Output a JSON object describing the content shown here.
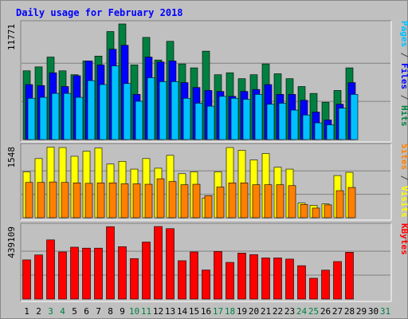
{
  "chart_data": {
    "type": "bar",
    "title": "Daily usage for February 2018",
    "categories": [
      "1",
      "2",
      "3",
      "4",
      "5",
      "6",
      "7",
      "8",
      "9",
      "10",
      "11",
      "12",
      "13",
      "14",
      "15",
      "16",
      "17",
      "18",
      "19",
      "20",
      "21",
      "22",
      "23",
      "24",
      "25",
      "26",
      "27",
      "28",
      "29",
      "30",
      "31"
    ],
    "weekend_categories": [
      "3",
      "4",
      "10",
      "11",
      "17",
      "18",
      "24",
      "25",
      "31"
    ],
    "panels": [
      {
        "name": "hits-files-pages",
        "y_max_label": "11771",
        "ylim": [
          0,
          11771
        ],
        "grid": true,
        "series": [
          {
            "name": "Hits",
            "color": "#008040",
            "values": [
              7000,
              7400,
              8400,
              7000,
              6600,
              8000,
              8500,
              11000,
              11771,
              7600,
              10400,
              8100,
              10000,
              7700,
              7300,
              9000,
              6600,
              6800,
              6200,
              6600,
              7700,
              6700,
              6200,
              5400,
              4700,
              3800,
              5000,
              7300,
              0,
              0,
              0
            ]
          },
          {
            "name": "Files",
            "color": "#0000ff",
            "values": [
              5600,
              5500,
              6800,
              5400,
              6500,
              8000,
              7600,
              9200,
              9600,
              4600,
              8400,
              7900,
              8000,
              5800,
              5300,
              5000,
              4900,
              4400,
              4900,
              5100,
              5600,
              4600,
              4600,
              4000,
              2800,
              2000,
              3600,
              5800,
              0,
              0,
              0
            ]
          },
          {
            "name": "Pages",
            "color": "#00c0ff",
            "values": [
              4200,
              4300,
              4700,
              4700,
              4300,
              6000,
              5600,
              7500,
              5700,
              3900,
              6300,
              5900,
              5900,
              4200,
              3700,
              3400,
              4400,
              4200,
              4100,
              4600,
              3600,
              3700,
              3000,
              2500,
              1700,
              1500,
              3200,
              4600,
              0,
              0,
              0
            ]
          }
        ]
      },
      {
        "name": "visits-sites",
        "y_max_label": "1548",
        "ylim": [
          0,
          1548
        ],
        "grid": true,
        "series": [
          {
            "name": "Visits",
            "color": "#ffff00",
            "values": [
              1000,
              1290,
              1540,
              1530,
              1340,
              1450,
              1520,
              1170,
              1230,
              1060,
              1290,
              1080,
              1360,
              960,
              1000,
              430,
              1000,
              1530,
              1470,
              1260,
              1400,
              1100,
              1060,
              320,
              270,
              300,
              920,
              990,
              0,
              0,
              0
            ]
          },
          {
            "name": "Sites",
            "color": "#ff8000",
            "values": [
              770,
              770,
              780,
              770,
              760,
              750,
              760,
              760,
              740,
              740,
              730,
              850,
              790,
              720,
              730,
              480,
              670,
              760,
              760,
              720,
              720,
              720,
              700,
              290,
              210,
              280,
              590,
              660,
              0,
              0,
              0
            ]
          }
        ]
      },
      {
        "name": "kbytes",
        "y_max_label": "439109",
        "ylim": [
          0,
          439109
        ],
        "grid": true,
        "series": [
          {
            "name": "KBytes",
            "color": "#ff0000",
            "values": [
              237000,
              267000,
              358000,
              285000,
              314000,
              308000,
              308000,
              438000,
              317000,
              245000,
              345000,
              439109,
              426000,
              232000,
              285000,
              176000,
              288000,
              222000,
              278000,
              269000,
              249000,
              249000,
              242000,
              202000,
              126000,
              175000,
              227000,
              283000,
              0,
              0,
              0
            ]
          }
        ]
      }
    ],
    "right_labels": {
      "panel1": [
        {
          "text": "Pages",
          "color": "#00c0ff"
        },
        {
          "text": " / ",
          "color": "#404040"
        },
        {
          "text": "Files",
          "color": "#0000ff"
        },
        {
          "text": " / ",
          "color": "#404040"
        },
        {
          "text": "Hits",
          "color": "#008040"
        }
      ],
      "panel2": [
        {
          "text": "Sites",
          "color": "#ff8000"
        },
        {
          "text": " / ",
          "color": "#404040"
        },
        {
          "text": "Visits",
          "color": "#ffff00"
        }
      ],
      "panel3": [
        {
          "text": "KBytes",
          "color": "#ff0000"
        }
      ]
    }
  }
}
